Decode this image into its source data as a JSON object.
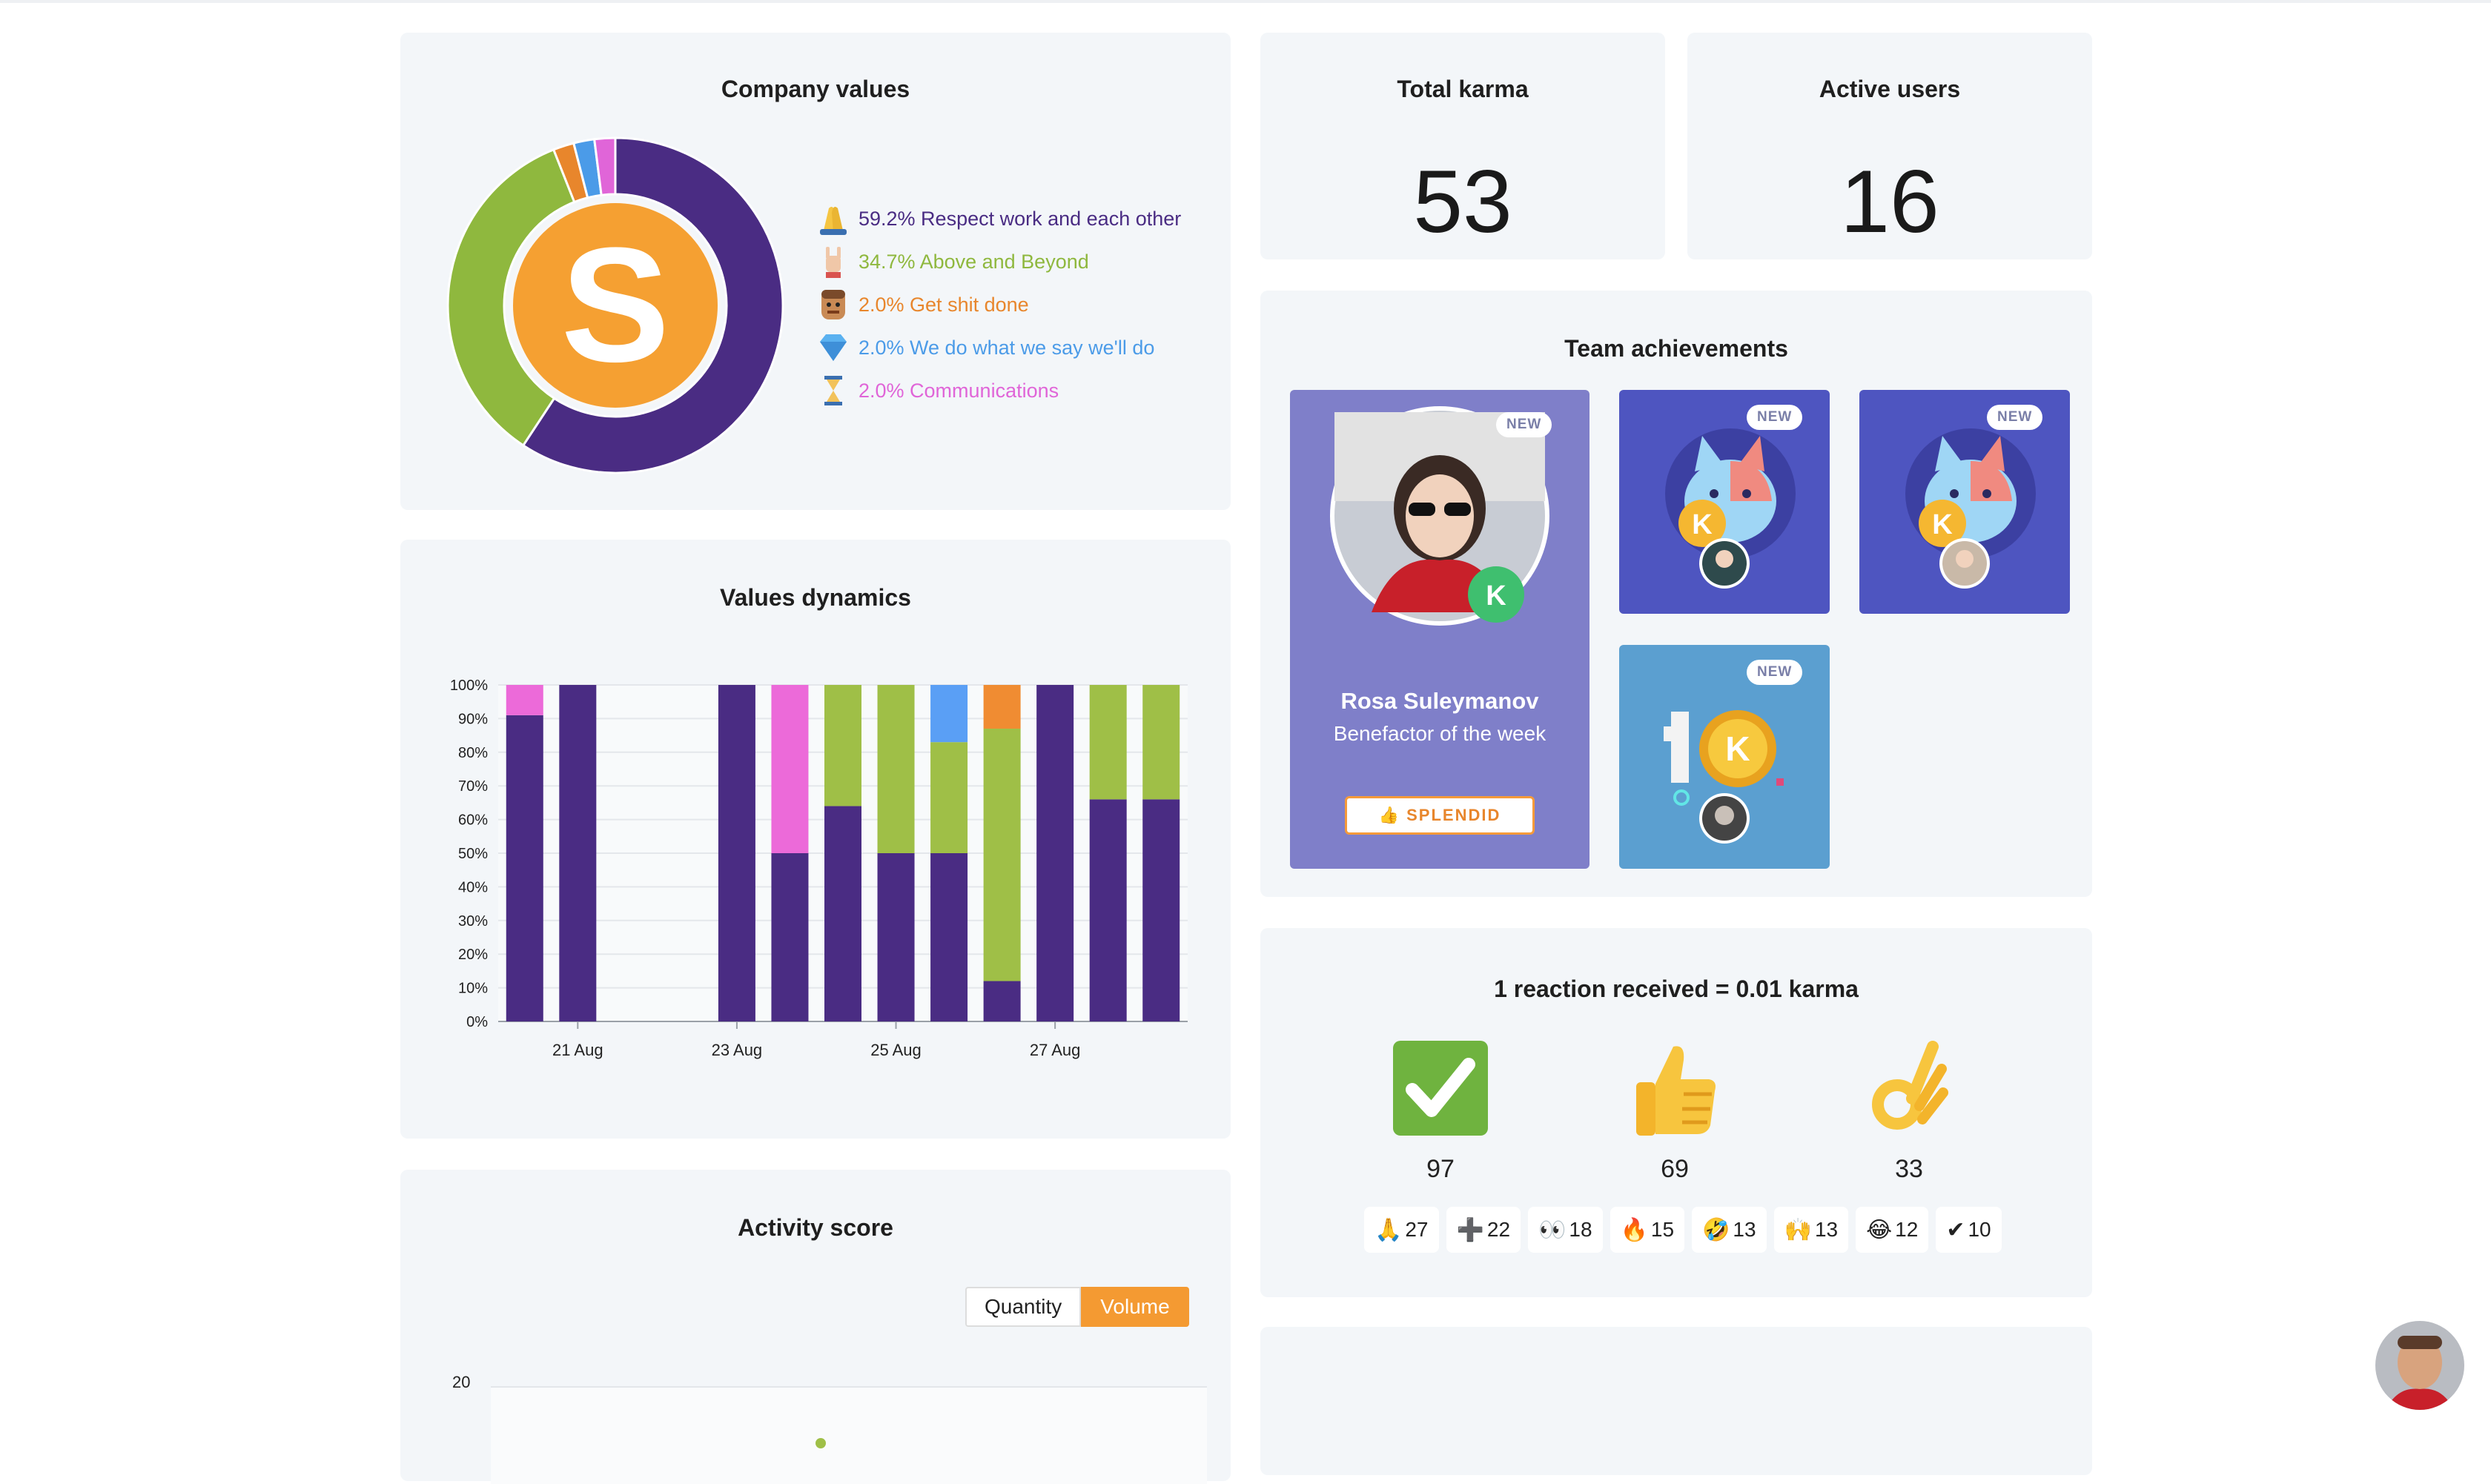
{
  "company_values": {
    "title": "Company values",
    "logo_letter": "S",
    "items": [
      {
        "icon": "praying-hands-icon",
        "label": "59.2% Respect work and each other",
        "color": "#4a2c83"
      },
      {
        "icon": "rock-hand-icon",
        "label": "34.7% Above and Beyond",
        "color": "#8fb83e"
      },
      {
        "icon": "worker-face-icon",
        "label": "2.0% Get shit done",
        "color": "#e8862c"
      },
      {
        "icon": "diamond-icon",
        "label": "2.0% We do what we say we'll do",
        "color": "#4b9be8"
      },
      {
        "icon": "hourglass-icon",
        "label": "2.0% Communications",
        "color": "#e065d8"
      }
    ]
  },
  "total_karma": {
    "title": "Total karma",
    "value": "53"
  },
  "active_users": {
    "title": "Active users",
    "value": "16"
  },
  "values_dynamics": {
    "title": "Values dynamics",
    "chart_data": {
      "type": "bar",
      "stacked": true,
      "title": "Values dynamics",
      "y_ticks": [
        "0%",
        "10%",
        "20%",
        "30%",
        "40%",
        "50%",
        "60%",
        "70%",
        "80%",
        "90%",
        "100%"
      ],
      "x_ticks": [
        "21 Aug",
        "23 Aug",
        "25 Aug",
        "27 Aug"
      ],
      "ylim": [
        0,
        100
      ],
      "colors": {
        "purple": "#4a2c83",
        "green": "#9fbf47",
        "pink": "#ec6ad9",
        "blue": "#5a9ff5",
        "orange": "#f08c32"
      },
      "bars": [
        {
          "slot": 0,
          "segments": [
            {
              "c": "purple",
              "v": 91
            },
            {
              "c": "pink",
              "v": 9
            }
          ]
        },
        {
          "slot": 1,
          "segments": [
            {
              "c": "purple",
              "v": 100
            }
          ]
        },
        {
          "slot": 4,
          "segments": [
            {
              "c": "purple",
              "v": 100
            }
          ]
        },
        {
          "slot": 5,
          "segments": [
            {
              "c": "purple",
              "v": 50
            },
            {
              "c": "pink",
              "v": 50
            }
          ]
        },
        {
          "slot": 6,
          "segments": [
            {
              "c": "purple",
              "v": 64
            },
            {
              "c": "green",
              "v": 36
            }
          ]
        },
        {
          "slot": 7,
          "segments": [
            {
              "c": "purple",
              "v": 50
            },
            {
              "c": "green",
              "v": 50
            }
          ]
        },
        {
          "slot": 8,
          "segments": [
            {
              "c": "purple",
              "v": 50
            },
            {
              "c": "green",
              "v": 33
            },
            {
              "c": "blue",
              "v": 17
            }
          ]
        },
        {
          "slot": 9,
          "segments": [
            {
              "c": "purple",
              "v": 12
            },
            {
              "c": "green",
              "v": 75
            },
            {
              "c": "orange",
              "v": 13
            }
          ]
        },
        {
          "slot": 10,
          "segments": [
            {
              "c": "purple",
              "v": 100
            }
          ]
        },
        {
          "slot": 11,
          "segments": [
            {
              "c": "purple",
              "v": 66
            },
            {
              "c": "green",
              "v": 34
            }
          ]
        },
        {
          "slot": 12,
          "segments": [
            {
              "c": "purple",
              "v": 66
            },
            {
              "c": "green",
              "v": 34
            }
          ]
        }
      ],
      "tick_slots": [
        1,
        4,
        7,
        10
      ]
    }
  },
  "team_achievements": {
    "title": "Team achievements",
    "new_label": "NEW",
    "featured": {
      "name": "Rosa Suleymanov",
      "subtitle": "Benefactor of the week",
      "button": "👍 SPLENDID"
    }
  },
  "reactions": {
    "title": "1 reaction received = 0.01 karma",
    "big": [
      {
        "icon": "check-box-icon",
        "count": "97"
      },
      {
        "icon": "thumbs-up-icon",
        "count": "69"
      },
      {
        "icon": "ok-hand-icon",
        "count": "33"
      }
    ],
    "chips": [
      {
        "emoji": "🙏",
        "icon": "pray-icon",
        "count": "27"
      },
      {
        "emoji": "➕",
        "icon": "plus-icon",
        "count": "22"
      },
      {
        "emoji": "👀",
        "icon": "eyes-icon",
        "count": "18"
      },
      {
        "emoji": "🔥",
        "icon": "fire-icon",
        "count": "15"
      },
      {
        "emoji": "🤣",
        "icon": "rofl-icon",
        "count": "13"
      },
      {
        "emoji": "🙌",
        "icon": "raised-hands-icon",
        "count": "13"
      },
      {
        "emoji": "😂",
        "icon": "joy-icon",
        "count": "12"
      },
      {
        "emoji": "✔",
        "icon": "checkmark-icon",
        "count": "10"
      }
    ]
  },
  "activity_score": {
    "title": "Activity score",
    "toggle": {
      "quantity": "Quantity",
      "volume": "Volume"
    },
    "y_top_tick": "20"
  }
}
